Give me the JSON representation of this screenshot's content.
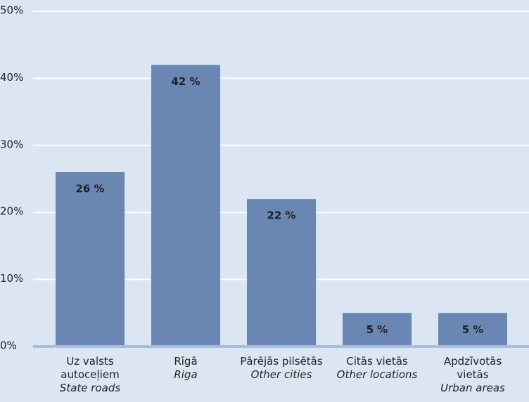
{
  "chart_data": {
    "type": "bar",
    "categories": [
      "Uz valsts autoceļiem",
      "Rīgā",
      "Pārējās pilsētās",
      "Citās vietās",
      "Apdzīvotās vietās"
    ],
    "category_translations": [
      "State roads",
      "Riga",
      "Other cities",
      "Other locations",
      "Urban areas"
    ],
    "values": [
      26,
      42,
      22,
      5,
      5
    ],
    "value_labels": [
      "26 %",
      "42 %",
      "22 %",
      "5 %",
      "5 %"
    ],
    "color": "#6a87b3",
    "ylim": [
      0,
      50
    ],
    "yticks": [
      {
        "value": 0,
        "label": "0%"
      },
      {
        "value": 10,
        "label": "10%"
      },
      {
        "value": 20,
        "label": "20%"
      },
      {
        "value": 30,
        "label": "30%"
      },
      {
        "value": 40,
        "label": "40%"
      },
      {
        "value": 50,
        "label": "50%"
      }
    ],
    "grid": true
  }
}
